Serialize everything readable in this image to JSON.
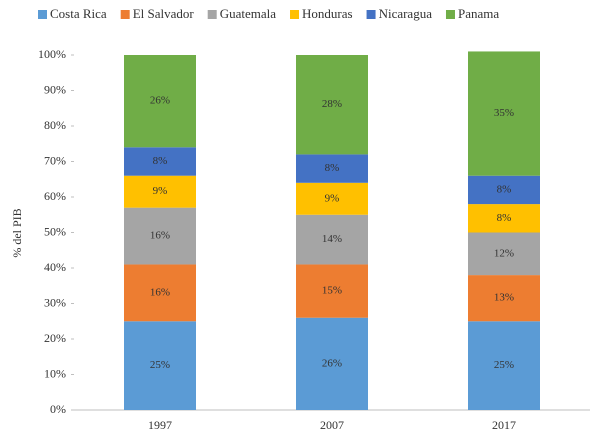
{
  "chart_data": {
    "type": "stacked_bar",
    "categories": [
      "1997",
      "2007",
      "2017"
    ],
    "y_label": "% del PIB",
    "ylim": [
      0,
      100
    ],
    "yticks": [
      {
        "value": 0,
        "label": "0%"
      },
      {
        "value": 10,
        "label": "10%"
      },
      {
        "value": 20,
        "label": "20%"
      },
      {
        "value": 30,
        "label": "30%"
      },
      {
        "value": 40,
        "label": "40%"
      },
      {
        "value": 50,
        "label": "50%"
      },
      {
        "value": 60,
        "label": "60%"
      },
      {
        "value": 70,
        "label": "70%"
      },
      {
        "value": 80,
        "label": "80%"
      },
      {
        "value": 90,
        "label": "90%"
      },
      {
        "value": 100,
        "label": "100%"
      }
    ],
    "grid": false,
    "legend": "top",
    "series": [
      {
        "name": "Costa Rica",
        "color": "#5b9bd5",
        "values": [
          25,
          26,
          25
        ],
        "value_labels": [
          "25%",
          "26%",
          "25%"
        ]
      },
      {
        "name": "El Salvador",
        "color": "#ed7d31",
        "values": [
          16,
          15,
          13
        ],
        "value_labels": [
          "16%",
          "15%",
          "13%"
        ]
      },
      {
        "name": "Guatemala",
        "color": "#a5a5a5",
        "values": [
          16,
          14,
          12
        ],
        "value_labels": [
          "16%",
          "14%",
          "12%"
        ]
      },
      {
        "name": "Honduras",
        "color": "#ffc000",
        "values": [
          9,
          9,
          8
        ],
        "value_labels": [
          "9%",
          "9%",
          "8%"
        ]
      },
      {
        "name": "Nicaragua",
        "color": "#4472c4",
        "values": [
          8,
          8,
          8
        ],
        "value_labels": [
          "8%",
          "8%",
          "8%"
        ]
      },
      {
        "name": "Panama",
        "color": "#70ad47",
        "values": [
          26,
          28,
          35
        ],
        "value_labels": [
          "26%",
          "28%",
          "35%"
        ]
      }
    ]
  }
}
